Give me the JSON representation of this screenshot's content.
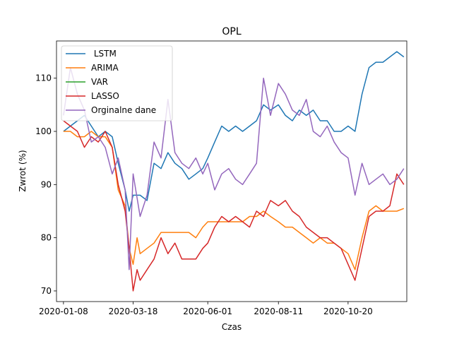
{
  "chart_data": {
    "type": "line",
    "title": "OPL",
    "xlabel": "Czas",
    "ylabel": "Zwrot (%)",
    "x_ticks": [
      "2020-01-08",
      "2020-03-18",
      "2020-06-01",
      "2020-08-11",
      "2020-10-20"
    ],
    "y_ticks": [
      70,
      80,
      90,
      100,
      110
    ],
    "xlim": [
      "2020-01-01",
      "2020-12-18"
    ],
    "ylim": [
      68,
      117
    ],
    "legend_position": "top-left",
    "series": [
      {
        "name": " LSTM",
        "color": "#1f77b4",
        "points": [
          [
            "2020-01-08",
            100
          ],
          [
            "2020-01-15",
            101
          ],
          [
            "2020-01-22",
            102
          ],
          [
            "2020-01-29",
            103
          ],
          [
            "2020-02-05",
            101
          ],
          [
            "2020-02-12",
            99
          ],
          [
            "2020-02-19",
            100
          ],
          [
            "2020-02-26",
            99
          ],
          [
            "2020-03-03",
            94
          ],
          [
            "2020-03-10",
            89
          ],
          [
            "2020-03-14",
            85
          ],
          [
            "2020-03-18",
            88
          ],
          [
            "2020-03-25",
            88
          ],
          [
            "2020-04-01",
            87
          ],
          [
            "2020-04-08",
            94
          ],
          [
            "2020-04-15",
            93
          ],
          [
            "2020-04-22",
            96
          ],
          [
            "2020-04-29",
            94
          ],
          [
            "2020-05-06",
            93
          ],
          [
            "2020-05-13",
            91
          ],
          [
            "2020-05-20",
            92
          ],
          [
            "2020-05-27",
            93
          ],
          [
            "2020-06-01",
            95
          ],
          [
            "2020-06-08",
            98
          ],
          [
            "2020-06-15",
            101
          ],
          [
            "2020-06-22",
            100
          ],
          [
            "2020-06-29",
            101
          ],
          [
            "2020-07-06",
            100
          ],
          [
            "2020-07-13",
            101
          ],
          [
            "2020-07-20",
            102
          ],
          [
            "2020-07-27",
            105
          ],
          [
            "2020-08-03",
            104
          ],
          [
            "2020-08-11",
            105
          ],
          [
            "2020-08-18",
            103
          ],
          [
            "2020-08-25",
            102
          ],
          [
            "2020-09-01",
            104
          ],
          [
            "2020-09-08",
            103
          ],
          [
            "2020-09-15",
            104
          ],
          [
            "2020-09-22",
            102
          ],
          [
            "2020-09-29",
            102
          ],
          [
            "2020-10-06",
            100
          ],
          [
            "2020-10-13",
            100
          ],
          [
            "2020-10-20",
            101
          ],
          [
            "2020-10-27",
            100
          ],
          [
            "2020-11-03",
            107
          ],
          [
            "2020-11-10",
            112
          ],
          [
            "2020-11-17",
            113
          ],
          [
            "2020-11-24",
            113
          ],
          [
            "2020-12-01",
            114
          ],
          [
            "2020-12-08",
            115
          ],
          [
            "2020-12-15",
            114
          ]
        ]
      },
      {
        "name": "ARIMA",
        "color": "#ff7f0e",
        "points": [
          [
            "2020-01-08",
            100
          ],
          [
            "2020-01-15",
            100
          ],
          [
            "2020-01-22",
            99
          ],
          [
            "2020-01-29",
            99
          ],
          [
            "2020-02-05",
            100
          ],
          [
            "2020-02-12",
            99
          ],
          [
            "2020-02-19",
            99
          ],
          [
            "2020-02-26",
            97
          ],
          [
            "2020-03-03",
            89
          ],
          [
            "2020-03-10",
            86
          ],
          [
            "2020-03-14",
            78
          ],
          [
            "2020-03-18",
            75
          ],
          [
            "2020-03-22",
            80
          ],
          [
            "2020-03-25",
            77
          ],
          [
            "2020-04-01",
            78
          ],
          [
            "2020-04-08",
            79
          ],
          [
            "2020-04-15",
            81
          ],
          [
            "2020-04-22",
            81
          ],
          [
            "2020-04-29",
            81
          ],
          [
            "2020-05-06",
            81
          ],
          [
            "2020-05-13",
            81
          ],
          [
            "2020-05-20",
            80
          ],
          [
            "2020-05-27",
            82
          ],
          [
            "2020-06-01",
            83
          ],
          [
            "2020-06-08",
            83
          ],
          [
            "2020-06-15",
            83
          ],
          [
            "2020-06-22",
            83
          ],
          [
            "2020-06-29",
            83
          ],
          [
            "2020-07-06",
            83
          ],
          [
            "2020-07-13",
            84
          ],
          [
            "2020-07-20",
            84
          ],
          [
            "2020-07-27",
            85
          ],
          [
            "2020-08-03",
            84
          ],
          [
            "2020-08-11",
            83
          ],
          [
            "2020-08-18",
            82
          ],
          [
            "2020-08-25",
            82
          ],
          [
            "2020-09-01",
            81
          ],
          [
            "2020-09-08",
            80
          ],
          [
            "2020-09-15",
            79
          ],
          [
            "2020-09-22",
            80
          ],
          [
            "2020-09-29",
            79
          ],
          [
            "2020-10-06",
            79
          ],
          [
            "2020-10-13",
            78
          ],
          [
            "2020-10-20",
            77
          ],
          [
            "2020-10-27",
            74
          ],
          [
            "2020-11-03",
            80
          ],
          [
            "2020-11-10",
            85
          ],
          [
            "2020-11-17",
            86
          ],
          [
            "2020-11-24",
            85
          ],
          [
            "2020-12-01",
            85
          ],
          [
            "2020-12-08",
            85
          ],
          [
            "2020-12-15",
            85.5
          ]
        ]
      },
      {
        "name": "VAR",
        "color": "#2ca02c",
        "points": []
      },
      {
        "name": "LASSO",
        "color": "#d62728",
        "points": [
          [
            "2020-01-08",
            102
          ],
          [
            "2020-01-15",
            101
          ],
          [
            "2020-01-22",
            100
          ],
          [
            "2020-01-29",
            97
          ],
          [
            "2020-02-05",
            99
          ],
          [
            "2020-02-12",
            98
          ],
          [
            "2020-02-19",
            100
          ],
          [
            "2020-02-26",
            97
          ],
          [
            "2020-03-03",
            90
          ],
          [
            "2020-03-10",
            85
          ],
          [
            "2020-03-14",
            78
          ],
          [
            "2020-03-18",
            70
          ],
          [
            "2020-03-22",
            74
          ],
          [
            "2020-03-25",
            72
          ],
          [
            "2020-04-01",
            74
          ],
          [
            "2020-04-08",
            76
          ],
          [
            "2020-04-15",
            80
          ],
          [
            "2020-04-22",
            77
          ],
          [
            "2020-04-29",
            79
          ],
          [
            "2020-05-06",
            76
          ],
          [
            "2020-05-13",
            76
          ],
          [
            "2020-05-20",
            76
          ],
          [
            "2020-05-27",
            78
          ],
          [
            "2020-06-01",
            79
          ],
          [
            "2020-06-08",
            82
          ],
          [
            "2020-06-15",
            84
          ],
          [
            "2020-06-22",
            83
          ],
          [
            "2020-06-29",
            84
          ],
          [
            "2020-07-06",
            83
          ],
          [
            "2020-07-13",
            82
          ],
          [
            "2020-07-20",
            85
          ],
          [
            "2020-07-27",
            84
          ],
          [
            "2020-08-03",
            87
          ],
          [
            "2020-08-11",
            86
          ],
          [
            "2020-08-18",
            87
          ],
          [
            "2020-08-25",
            85
          ],
          [
            "2020-09-01",
            84
          ],
          [
            "2020-09-08",
            82
          ],
          [
            "2020-09-15",
            81
          ],
          [
            "2020-09-22",
            80
          ],
          [
            "2020-09-29",
            80
          ],
          [
            "2020-10-06",
            79
          ],
          [
            "2020-10-13",
            78
          ],
          [
            "2020-10-20",
            75
          ],
          [
            "2020-10-27",
            72
          ],
          [
            "2020-11-03",
            78
          ],
          [
            "2020-11-10",
            84
          ],
          [
            "2020-11-17",
            85
          ],
          [
            "2020-11-24",
            85
          ],
          [
            "2020-12-01",
            86
          ],
          [
            "2020-12-08",
            92
          ],
          [
            "2020-12-15",
            90
          ]
        ]
      },
      {
        "name": "Orginalne dane",
        "color": "#9467bd",
        "points": [
          [
            "2020-01-08",
            103
          ],
          [
            "2020-01-15",
            112
          ],
          [
            "2020-01-22",
            107
          ],
          [
            "2020-01-29",
            104
          ],
          [
            "2020-02-05",
            98
          ],
          [
            "2020-02-12",
            99
          ],
          [
            "2020-02-19",
            97
          ],
          [
            "2020-02-26",
            92
          ],
          [
            "2020-03-03",
            95
          ],
          [
            "2020-03-10",
            89
          ],
          [
            "2020-03-14",
            74
          ],
          [
            "2020-03-18",
            92
          ],
          [
            "2020-03-25",
            84
          ],
          [
            "2020-04-01",
            88
          ],
          [
            "2020-04-08",
            98
          ],
          [
            "2020-04-15",
            95
          ],
          [
            "2020-04-22",
            106
          ],
          [
            "2020-04-29",
            96
          ],
          [
            "2020-05-06",
            94
          ],
          [
            "2020-05-13",
            93
          ],
          [
            "2020-05-20",
            95
          ],
          [
            "2020-05-27",
            92
          ],
          [
            "2020-06-01",
            94
          ],
          [
            "2020-06-08",
            89
          ],
          [
            "2020-06-15",
            92
          ],
          [
            "2020-06-22",
            93
          ],
          [
            "2020-06-29",
            91
          ],
          [
            "2020-07-06",
            90
          ],
          [
            "2020-07-13",
            92
          ],
          [
            "2020-07-20",
            94
          ],
          [
            "2020-07-27",
            110
          ],
          [
            "2020-08-03",
            103
          ],
          [
            "2020-08-11",
            109
          ],
          [
            "2020-08-18",
            107
          ],
          [
            "2020-08-25",
            104
          ],
          [
            "2020-09-01",
            103
          ],
          [
            "2020-09-08",
            106
          ],
          [
            "2020-09-15",
            100
          ],
          [
            "2020-09-22",
            99
          ],
          [
            "2020-09-29",
            101
          ],
          [
            "2020-10-06",
            98
          ],
          [
            "2020-10-13",
            96
          ],
          [
            "2020-10-20",
            95
          ],
          [
            "2020-10-27",
            88
          ],
          [
            "2020-11-03",
            94
          ],
          [
            "2020-11-10",
            90
          ],
          [
            "2020-11-17",
            91
          ],
          [
            "2020-11-24",
            92
          ],
          [
            "2020-12-01",
            90
          ],
          [
            "2020-12-08",
            91
          ],
          [
            "2020-12-15",
            93
          ]
        ]
      }
    ]
  }
}
